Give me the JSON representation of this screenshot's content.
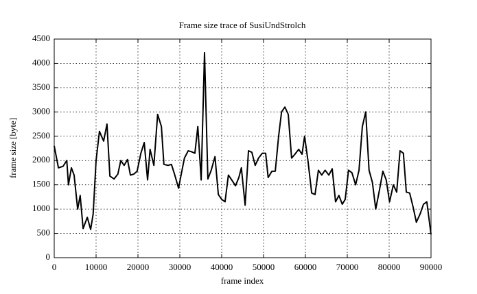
{
  "chart_data": {
    "type": "line",
    "title": "Frame size trace of SusiUndStrolch",
    "x_label": "frame index",
    "y_label": "frame size [byte]",
    "color": "#000000",
    "grid": true,
    "x": [
      0,
      1000,
      2100,
      3000,
      3400,
      4100,
      4750,
      5600,
      6200,
      6900,
      7900,
      8700,
      9300,
      10000,
      10800,
      11800,
      12600,
      13300,
      14300,
      15200,
      15900,
      16700,
      17500,
      18200,
      19000,
      19800,
      20700,
      21500,
      22300,
      22900,
      23800,
      24700,
      25600,
      26200,
      27200,
      28000,
      28800,
      29700,
      30300,
      31100,
      32000,
      32800,
      33600,
      34300,
      35100,
      35900,
      36700,
      37500,
      38400,
      39200,
      40000,
      40800,
      41600,
      42400,
      43300,
      44100,
      44700,
      45600,
      46400,
      47200,
      48000,
      48800,
      49700,
      50500,
      51100,
      52000,
      52800,
      53600,
      54300,
      55100,
      55900,
      56700,
      57500,
      58400,
      59200,
      59800,
      60600,
      61500,
      62300,
      63100,
      63900,
      64700,
      65600,
      66400,
      67200,
      68000,
      68800,
      69500,
      70300,
      71100,
      72000,
      72800,
      73600,
      74400,
      75200,
      76000,
      76800,
      77700,
      78500,
      79300,
      80100,
      81000,
      81800,
      82600,
      83400,
      84100,
      84900,
      85700,
      86500,
      87400,
      88200,
      89000,
      90000
    ],
    "values": [
      2300,
      1850,
      1880,
      2000,
      1500,
      1850,
      1700,
      1000,
      1280,
      600,
      830,
      580,
      900,
      2000,
      2600,
      2400,
      2750,
      1680,
      1620,
      1720,
      2000,
      1900,
      2020,
      1700,
      1720,
      1780,
      2150,
      2370,
      1600,
      2230,
      1900,
      2950,
      2700,
      1920,
      1900,
      1920,
      1700,
      1430,
      1700,
      2050,
      2200,
      2180,
      2150,
      2700,
      1600,
      4220,
      1620,
      1800,
      2080,
      1300,
      1200,
      1150,
      1700,
      1600,
      1480,
      1650,
      1850,
      1080,
      2200,
      2170,
      1900,
      2050,
      2150,
      2150,
      1650,
      1780,
      1780,
      2500,
      3000,
      3100,
      2950,
      2050,
      2130,
      2230,
      2130,
      2500,
      2000,
      1330,
      1300,
      1800,
      1700,
      1800,
      1700,
      1830,
      1150,
      1280,
      1100,
      1200,
      1800,
      1750,
      1500,
      1800,
      2700,
      3000,
      1800,
      1550,
      1000,
      1400,
      1780,
      1600,
      1150,
      1500,
      1350,
      2200,
      2150,
      1350,
      1330,
      1050,
      730,
      900,
      1100,
      1150,
      480
    ],
    "xlim": [
      0,
      90000
    ],
    "xticks": [
      0,
      10000,
      20000,
      30000,
      40000,
      50000,
      60000,
      70000,
      80000,
      90000
    ],
    "ylim": [
      0,
      4500
    ],
    "yticks": [
      0,
      500,
      1000,
      1500,
      2000,
      2500,
      3000,
      3500,
      4000,
      4500
    ]
  }
}
